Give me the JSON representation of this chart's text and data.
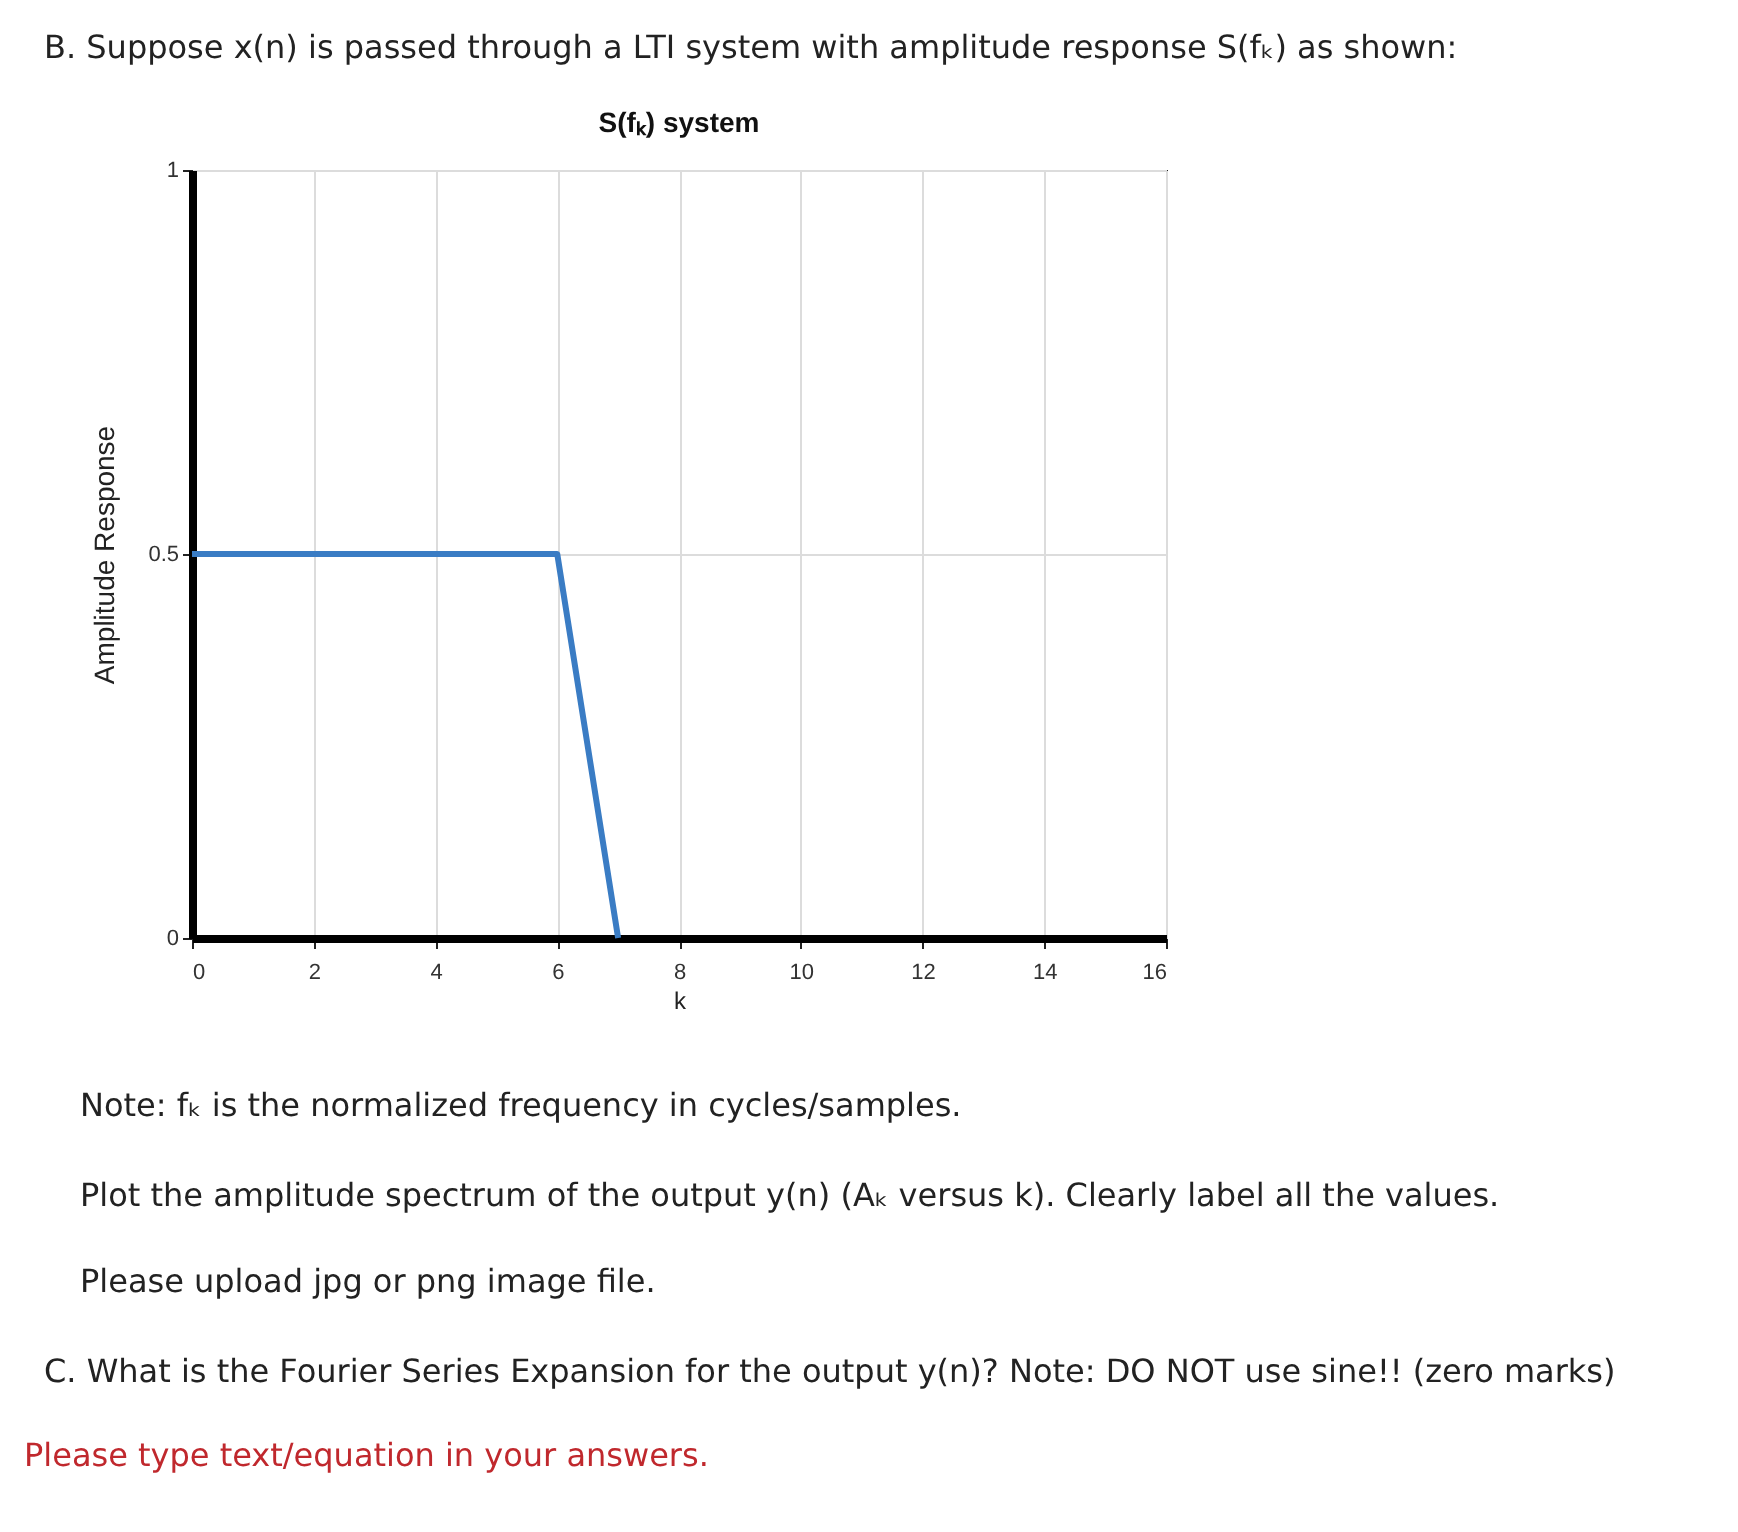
{
  "chart_data": {
    "type": "line",
    "title": "S(fₖ) system",
    "xlabel": "k",
    "ylabel": "Amplitude Response",
    "x": [
      0,
      6,
      7
    ],
    "series": [
      {
        "color": "#3a7cc4",
        "values": [
          0.5,
          0.5,
          0
        ]
      }
    ],
    "xlim": [
      0,
      16
    ],
    "xticks": [
      0,
      2,
      4,
      6,
      8,
      10,
      12,
      14,
      16
    ],
    "ylim": [
      0,
      1
    ],
    "yticks": [
      0,
      0.5,
      1
    ],
    "grid": true,
    "annotations": [
      "B. Suppose x(n) is passed through a LTI system with amplitude response S(fₖ) as shown:",
      "Note: fₖ is the normalized frequency in cycles/samples.",
      "Plot the amplitude spectrum of the output y(n) (Aₖ versus k). Clearly label all the values.",
      "Please upload jpg or png image file.",
      "C. What is the Fourier Series Expansion for the output y(n)? Note: DO NOT use sine!! (zero marks)",
      "Please type text/equation in your answers."
    ]
  }
}
